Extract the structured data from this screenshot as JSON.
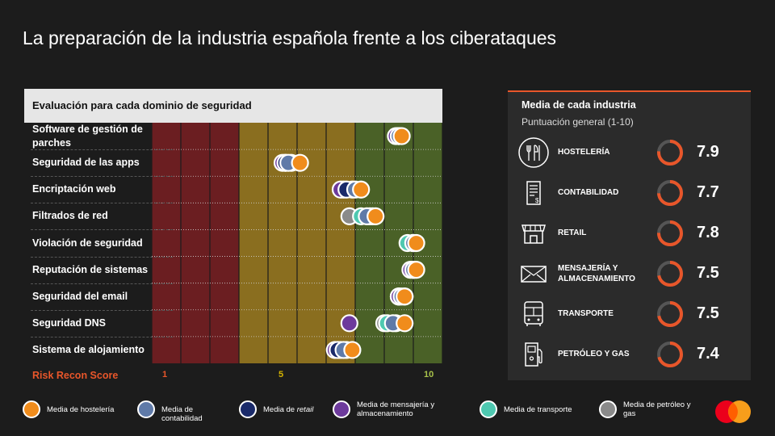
{
  "title": "La preparación de la industria española frente a los ciberataques",
  "chart_data": {
    "type": "scatter",
    "title": "Evaluación para cada dominio de seguridad",
    "xlabel": "Risk Recon Score",
    "xlim": [
      1,
      10
    ],
    "tick_labels": [
      {
        "value": 1,
        "label": "1"
      },
      {
        "value": 5,
        "label": "5"
      },
      {
        "value": 10,
        "label": "10"
      }
    ],
    "bands": [
      {
        "from": 1,
        "to": 4,
        "color": "#6b1e21"
      },
      {
        "from": 4,
        "to": 8,
        "color": "#8a6e1f"
      },
      {
        "from": 8,
        "to": 10,
        "color": "#4a6127"
      }
    ],
    "categories": [
      "Software de gestión de parches",
      "Seguridad de las apps",
      "Encriptación web",
      "Filtrados de red",
      "Violación de seguridad",
      "Reputación de sistemas",
      "Seguridad del email",
      "Seguridad DNS",
      "Sistema de alojamiento"
    ],
    "series": [
      {
        "name": "Media de hostelería",
        "color": "#f08c1c",
        "values": [
          9.1,
          5.6,
          7.7,
          8.2,
          9.6,
          9.6,
          9.2,
          9.2,
          7.4
        ]
      },
      {
        "name": "Media de contabilidad",
        "color": "#5f7aa8",
        "values": [
          9.0,
          5.2,
          7.5,
          7.9,
          9.5,
          9.5,
          9.1,
          8.8,
          7.1
        ]
      },
      {
        "name": "Media de retail",
        "color": "#1a2a6a",
        "values": [
          9.0,
          5.1,
          7.2,
          8.0,
          9.5,
          9.5,
          9.2,
          8.9,
          6.9
        ]
      },
      {
        "name": "Media de mensajería y almacenamiento",
        "color": "#6d3a9c",
        "values": [
          8.9,
          5.0,
          7.0,
          8.1,
          9.5,
          9.4,
          9.0,
          7.3,
          6.8
        ]
      },
      {
        "name": "Media de transporte",
        "color": "#4ec8b0",
        "values": [
          9.0,
          5.1,
          7.1,
          7.7,
          9.3,
          9.5,
          9.0,
          8.6,
          7.0
        ]
      },
      {
        "name": "Media de petróleo y gas",
        "color": "#8a8a8a",
        "values": [
          9.0,
          5.3,
          7.4,
          7.3,
          9.5,
          9.5,
          9.0,
          8.5,
          7.2
        ]
      }
    ]
  },
  "legend": [
    {
      "label": "Media de hostelería",
      "color": "#f08c1c"
    },
    {
      "label": "Media de contabilidad",
      "color": "#5f7aa8"
    },
    {
      "label_pre": "Media de ",
      "label_em": "retail",
      "color": "#1a2a6a"
    },
    {
      "label": "Media de mensajería y almacenamiento",
      "color": "#6d3a9c"
    },
    {
      "label": "Media de transporte",
      "color": "#4ec8b0"
    },
    {
      "label": "Media de petróleo y gas",
      "color": "#8a8a8a"
    }
  ],
  "panel": {
    "title": "Media de cada industria",
    "subtitle": "Puntuación general (1-10)",
    "industries": [
      {
        "name": "HOSTELERÍA",
        "score": "7.9",
        "value": 7.9,
        "icon": "cutlery-icon"
      },
      {
        "name": "CONTABILIDAD",
        "score": "7.7",
        "value": 7.7,
        "icon": "invoice-icon"
      },
      {
        "name": "RETAIL",
        "score": "7.8",
        "value": 7.8,
        "icon": "storefront-icon"
      },
      {
        "name": "MENSAJERÍA Y ALMACENAMIENTO",
        "score": "7.5",
        "value": 7.5,
        "icon": "envelope-icon"
      },
      {
        "name": "TRANSPORTE",
        "score": "7.5",
        "value": 7.5,
        "icon": "bus-icon"
      },
      {
        "name": "PETRÓLEO Y GAS",
        "score": "7.4",
        "value": 7.4,
        "icon": "fuel-pump-icon"
      }
    ]
  },
  "colors": {
    "accent": "#e8562a",
    "score_low": "#e8562a",
    "score_mid": "#d4b300",
    "score_high": "#a8c24a"
  }
}
